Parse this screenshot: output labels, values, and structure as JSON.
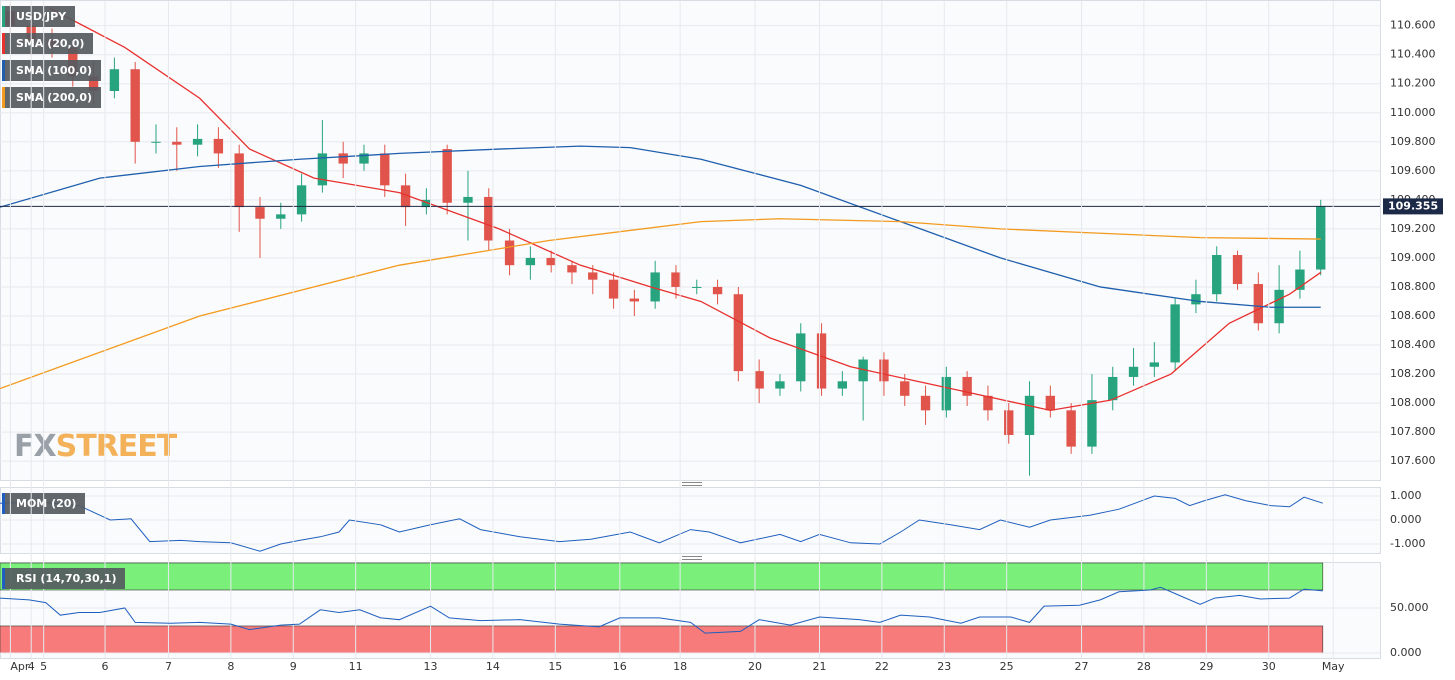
{
  "chart_data": [
    {
      "type": "candlestick",
      "title": "USD/JPY",
      "xlim": [
        0,
        66.35
      ],
      "ylim": [
        107.47,
        110.77
      ],
      "x": [
        0.5,
        1.5,
        2.5,
        3.5,
        4.5,
        5.5,
        6.5,
        7.5,
        8.5,
        9.5,
        10.5,
        11.5,
        12.5,
        13.5,
        14.5,
        15.5,
        16.5,
        17.5,
        18.5,
        19.5,
        20.5,
        21.5,
        22.5,
        23.5,
        24.5,
        25.5,
        26.5,
        27.5,
        28.5,
        29.5,
        30.5,
        31.5,
        32.5,
        33.5,
        34.5,
        35.5,
        36.5,
        37.5,
        38.5,
        39.5,
        40.5,
        41.5,
        42.5,
        43.5,
        44.5,
        45.5,
        46.5,
        47.5,
        48.5,
        49.5,
        50.5,
        51.5,
        52.5,
        53.5,
        54.5,
        55.5,
        56.5,
        57.5,
        58.5,
        59.5,
        60.5,
        61.5,
        62.5,
        63.5
      ],
      "open": [
        110.7,
        110.6,
        110.5,
        110.45,
        110.25,
        110.15,
        110.3,
        109.8,
        109.8,
        109.78,
        109.82,
        109.72,
        109.35,
        109.27,
        109.3,
        109.5,
        109.72,
        109.65,
        109.72,
        109.5,
        109.35,
        109.75,
        109.38,
        109.42,
        109.12,
        108.95,
        109.0,
        108.95,
        108.9,
        108.85,
        108.72,
        108.7,
        108.9,
        108.8,
        108.8,
        108.75,
        108.22,
        108.1,
        108.15,
        108.48,
        108.1,
        108.15,
        108.3,
        108.15,
        108.05,
        107.95,
        108.18,
        108.05,
        107.95,
        107.78,
        108.05,
        107.95,
        107.7,
        108.02,
        108.18,
        108.25,
        108.28,
        108.68,
        108.75,
        109.02,
        108.82,
        108.55,
        108.78,
        108.92
      ],
      "high": [
        110.75,
        110.68,
        110.58,
        110.52,
        110.35,
        110.38,
        110.35,
        109.92,
        109.9,
        109.92,
        109.9,
        109.78,
        109.42,
        109.38,
        109.58,
        109.95,
        109.8,
        109.78,
        109.78,
        109.58,
        109.48,
        109.78,
        109.6,
        109.48,
        109.2,
        109.08,
        109.05,
        108.98,
        108.95,
        108.9,
        108.78,
        108.98,
        108.95,
        108.85,
        108.85,
        108.8,
        108.3,
        108.2,
        108.55,
        108.55,
        108.22,
        108.32,
        108.35,
        108.2,
        108.12,
        108.25,
        108.22,
        108.12,
        108.0,
        108.15,
        108.12,
        108.0,
        108.2,
        108.25,
        108.38,
        108.42,
        108.72,
        108.85,
        109.08,
        109.05,
        108.9,
        108.95,
        109.05,
        109.4
      ],
      "low": [
        110.52,
        110.4,
        110.38,
        110.18,
        110.05,
        110.1,
        109.65,
        109.72,
        109.6,
        109.7,
        109.62,
        109.18,
        109.0,
        109.2,
        109.25,
        109.45,
        109.55,
        109.6,
        109.42,
        109.22,
        109.3,
        109.3,
        109.12,
        109.05,
        108.88,
        108.85,
        108.9,
        108.82,
        108.75,
        108.65,
        108.6,
        108.65,
        108.72,
        108.75,
        108.68,
        108.15,
        108.0,
        108.05,
        108.08,
        108.05,
        108.05,
        107.88,
        108.05,
        107.98,
        107.85,
        107.9,
        107.98,
        107.88,
        107.72,
        107.5,
        107.9,
        107.65,
        107.65,
        107.95,
        108.12,
        108.18,
        108.22,
        108.62,
        108.7,
        108.78,
        108.5,
        108.48,
        108.72,
        108.88
      ],
      "close": [
        110.6,
        110.5,
        110.45,
        110.25,
        110.15,
        110.3,
        109.8,
        109.8,
        109.78,
        109.82,
        109.72,
        109.35,
        109.27,
        109.3,
        109.5,
        109.72,
        109.65,
        109.72,
        109.5,
        109.35,
        109.4,
        109.38,
        109.42,
        109.12,
        108.95,
        109.0,
        108.95,
        108.9,
        108.85,
        108.72,
        108.7,
        108.9,
        108.8,
        108.8,
        108.75,
        108.22,
        108.1,
        108.15,
        108.48,
        108.1,
        108.15,
        108.3,
        108.15,
        108.05,
        107.95,
        108.18,
        108.05,
        107.95,
        107.78,
        108.05,
        107.95,
        107.7,
        108.02,
        108.18,
        108.25,
        108.28,
        108.68,
        108.75,
        109.02,
        108.82,
        108.55,
        108.78,
        108.92,
        109.355
      ],
      "up_color": "#27a37e",
      "down_color": "#e0544b",
      "series": [
        {
          "name": "SMA (20,0)",
          "color": "#e8312f",
          "x": [
            2.4,
            6,
            9.6,
            12,
            15.1,
            19.2,
            24,
            27.9,
            31.3,
            33.7,
            37,
            40.9,
            45.7,
            50.5,
            53.4,
            56.3,
            59.1,
            62,
            63.5
          ],
          "values": [
            110.72,
            110.45,
            110.1,
            109.75,
            109.55,
            109.45,
            109.2,
            108.95,
            108.8,
            108.7,
            108.45,
            108.25,
            108.1,
            107.95,
            108.02,
            108.2,
            108.55,
            108.75,
            108.9
          ]
        },
        {
          "name": "SMA (100,0)",
          "color": "#1f5fae",
          "x": [
            0,
            4.8,
            9.6,
            14.4,
            19.2,
            24,
            27.9,
            30.3,
            33.7,
            38.5,
            43.3,
            48.1,
            52.9,
            57.7,
            61.1,
            63.5
          ],
          "values": [
            109.35,
            109.55,
            109.63,
            109.68,
            109.72,
            109.75,
            109.77,
            109.76,
            109.68,
            109.5,
            109.25,
            109.0,
            108.8,
            108.7,
            108.66,
            108.66
          ]
        },
        {
          "name": "SMA (200,0)",
          "color": "#f39a1f",
          "x": [
            0,
            9.6,
            19.2,
            26.4,
            33.7,
            37.5,
            43.3,
            48.1,
            52.9,
            57.7,
            63.5
          ],
          "values": [
            108.1,
            108.6,
            108.95,
            109.12,
            109.25,
            109.27,
            109.25,
            109.2,
            109.17,
            109.14,
            109.13
          ]
        }
      ],
      "last_price": 109.355,
      "last_price_color": "#1c2a48",
      "yticks": [
        {
          "value": 107.6,
          "label": "107.600"
        },
        {
          "value": 107.8,
          "label": "107.800"
        },
        {
          "value": 108.0,
          "label": "108.000"
        },
        {
          "value": 108.2,
          "label": "108.200"
        },
        {
          "value": 108.4,
          "label": "108.400"
        },
        {
          "value": 108.6,
          "label": "108.600"
        },
        {
          "value": 108.8,
          "label": "108.800"
        },
        {
          "value": 109.0,
          "label": "109.000"
        },
        {
          "value": 109.2,
          "label": "109.200"
        },
        {
          "value": 109.4,
          "label": "109.400"
        },
        {
          "value": 109.6,
          "label": "109.600"
        },
        {
          "value": 109.8,
          "label": "109.800"
        },
        {
          "value": 110.0,
          "label": "110.000"
        },
        {
          "value": 110.2,
          "label": "110.200"
        },
        {
          "value": 110.4,
          "label": "110.400"
        },
        {
          "value": 110.6,
          "label": "110.600"
        }
      ],
      "grid": true,
      "watermark": [
        "FX",
        "STREET"
      ]
    },
    {
      "type": "line",
      "title": "MOM (20)",
      "color": "#1f5fbf",
      "xlim": [
        0,
        66.35
      ],
      "ylim": [
        -1.375,
        1.333
      ],
      "x": [
        0,
        1.9,
        3.8,
        5.3,
        6.3,
        7.2,
        8.7,
        9.6,
        11.1,
        12.5,
        13.5,
        14.4,
        15.4,
        16.3,
        16.8,
        18.3,
        19.2,
        20.7,
        22.1,
        23.1,
        25,
        26.9,
        28.4,
        30.3,
        31.7,
        33.2,
        34.1,
        35.6,
        37.5,
        38.5,
        39.4,
        40.9,
        42.3,
        43.3,
        44.2,
        45.7,
        47.1,
        48.1,
        49.5,
        50.5,
        52.4,
        53.8,
        55.5,
        56.5,
        57.2,
        57.9,
        58.9,
        59.9,
        61.1,
        62,
        62.7,
        63.6
      ],
      "values": [
        0.7,
        0.75,
        0.6,
        0.0,
        0.05,
        -0.9,
        -0.85,
        -0.9,
        -0.95,
        -1.3,
        -1.0,
        -0.85,
        -0.7,
        -0.5,
        0.0,
        -0.2,
        -0.5,
        -0.2,
        0.05,
        -0.4,
        -0.7,
        -0.9,
        -0.8,
        -0.5,
        -0.95,
        -0.4,
        -0.5,
        -0.95,
        -0.6,
        -0.9,
        -0.6,
        -0.95,
        -1.0,
        -0.5,
        0.0,
        -0.2,
        -0.4,
        0.0,
        -0.3,
        0.0,
        0.2,
        0.45,
        1.0,
        0.9,
        0.6,
        0.8,
        1.05,
        0.8,
        0.6,
        0.55,
        0.95,
        0.7
      ],
      "yticks": [
        {
          "value": -1,
          "label": "-1.000"
        },
        {
          "value": 0,
          "label": "0.000"
        },
        {
          "value": 1,
          "label": "1.000"
        }
      ],
      "grid": true
    },
    {
      "type": "line",
      "title": "RSI (14,70,30,1)",
      "color": "#1f5fbf",
      "xlim": [
        0,
        66.35
      ],
      "ylim": [
        -5.6,
        100
      ],
      "x": [
        0,
        1.4,
        2.2,
        2.9,
        3.8,
        4.8,
        6,
        6.5,
        8.2,
        9.6,
        11.1,
        12,
        13.5,
        14.4,
        15.4,
        16.3,
        17.3,
        18.3,
        19.2,
        20.7,
        21.6,
        23.1,
        25,
        26.9,
        28.8,
        29.8,
        31.7,
        33.2,
        33.9,
        35.6,
        36.5,
        38,
        39.4,
        41.3,
        42.3,
        43.3,
        44.7,
        46.2,
        47.1,
        48.6,
        49.5,
        50.2,
        51.9,
        52.9,
        53.8,
        55.3,
        55.8,
        56.7,
        57.7,
        58.4,
        59.6,
        60.6,
        62,
        62.7,
        63.6
      ],
      "values": [
        61,
        59,
        56,
        42,
        45,
        45,
        50,
        34,
        33,
        34,
        32,
        26,
        31,
        32,
        48,
        45,
        48,
        39,
        37,
        52,
        39,
        36,
        37,
        32,
        29,
        39,
        39,
        34,
        22,
        24,
        37,
        31,
        40,
        37,
        34,
        42,
        40,
        33,
        40,
        40,
        34,
        52,
        53,
        59,
        68,
        70,
        73,
        64,
        54,
        61,
        64,
        60,
        61,
        71,
        69
      ],
      "upper_band": [
        70,
        100
      ],
      "upper_color": "#7af07a",
      "lower_band": [
        0,
        30
      ],
      "lower_color": "#f77b7b",
      "yticks": [
        {
          "value": 0,
          "label": "0.000"
        },
        {
          "value": 50,
          "label": "50.000"
        }
      ],
      "xticks": [
        {
          "value": 0.5,
          "label": "Apr"
        },
        {
          "value": 1.5,
          "label": "4"
        },
        {
          "value": 2.1,
          "label": "5"
        },
        {
          "value": 5.05,
          "label": "6"
        },
        {
          "value": 8.1,
          "label": "7"
        },
        {
          "value": 11.1,
          "label": "8"
        },
        {
          "value": 14.1,
          "label": "9"
        },
        {
          "value": 17.1,
          "label": "11"
        },
        {
          "value": 20.7,
          "label": "13"
        },
        {
          "value": 23.7,
          "label": "14"
        },
        {
          "value": 26.7,
          "label": "15"
        },
        {
          "value": 29.8,
          "label": "16"
        },
        {
          "value": 32.7,
          "label": "18"
        },
        {
          "value": 36.3,
          "label": "20"
        },
        {
          "value": 39.4,
          "label": "21"
        },
        {
          "value": 42.4,
          "label": "22"
        },
        {
          "value": 45.4,
          "label": "23"
        },
        {
          "value": 48.4,
          "label": "25"
        },
        {
          "value": 52,
          "label": "27"
        },
        {
          "value": 55,
          "label": "28"
        },
        {
          "value": 58,
          "label": "29"
        },
        {
          "value": 61,
          "label": "30"
        },
        {
          "value": 64.1,
          "label": "May"
        }
      ],
      "grid": true
    }
  ]
}
